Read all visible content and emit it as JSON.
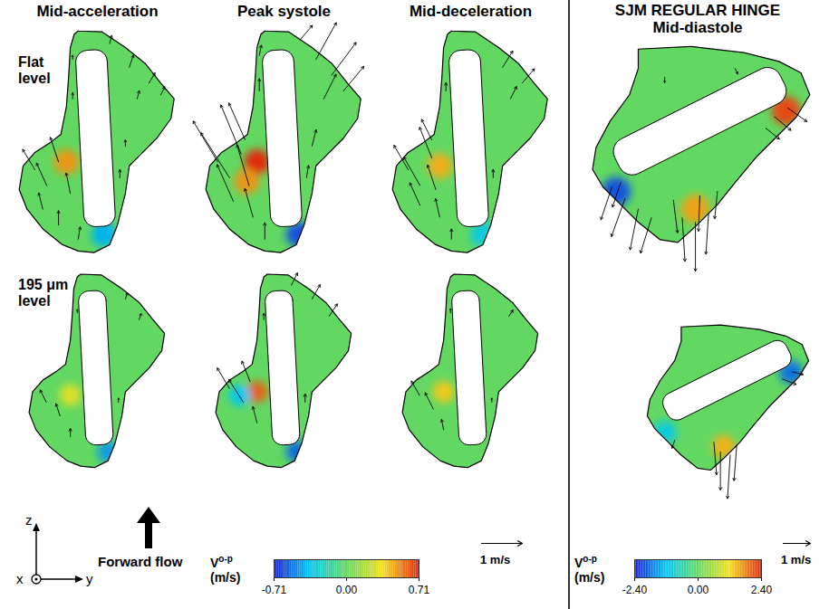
{
  "chart_data": {
    "type": "vector_field",
    "axes_key": {
      "vertical": "z",
      "out_of_page": "x",
      "horizontal": "y"
    },
    "flow_key": "Forward flow",
    "groups": [
      {
        "columns": [
          "Mid-acceleration",
          "Peak systole",
          "Mid-deceleration"
        ],
        "rows": [
          "Flat level",
          "195 μm level"
        ],
        "colorbar": {
          "symbol": "V",
          "superscript": "o-p",
          "unit": "(m/s)",
          "range": [
            -0.71,
            0.71
          ],
          "ticks": [
            -0.71,
            {
              "value": 0,
              "label": "0.00"
            },
            0.71
          ]
        },
        "reference_vector": {
          "value": 1,
          "label": "1 m/s"
        },
        "panels": [
          {
            "row": "Flat level",
            "column": "Mid-acceleration",
            "vectors": [
              [
                30,
                110,
                -0.3,
                0.5
              ],
              [
                45,
                90,
                -0.25,
                0.55
              ],
              [
                60,
                120,
                -0.2,
                0.6
              ],
              [
                40,
                60,
                -0.1,
                0.4
              ],
              [
                60,
                40,
                0,
                0.35
              ],
              [
                75,
                80,
                -0.1,
                0.5
              ],
              [
                85,
                22,
                0.05,
                0.3
              ],
              [
                138,
                100,
                0,
                0.2
              ],
              [
                145,
                140,
                0,
                0.15
              ],
              [
                150,
                240,
                0.1,
                0.3
              ],
              [
                175,
                220,
                0.15,
                0.25
              ],
              [
                160,
                200,
                0.05,
                0.2
              ],
              [
                190,
                205,
                0.1,
                0.2
              ],
              [
                125,
                270,
                0.05,
                0.2
              ],
              [
                78,
                200,
                0,
                0.15
              ],
              [
                78,
                250,
                0,
                0.1
              ]
            ],
            "out_of_plane_spots": [
              [
                70,
                120,
                0.5
              ],
              [
                118,
                28,
                -0.4
              ]
            ]
          },
          {
            "row": "Flat level",
            "column": "Peak systole",
            "vectors": [
              [
                25,
                120,
                -0.6,
                1.0
              ],
              [
                40,
                100,
                -0.7,
                1.1
              ],
              [
                55,
                130,
                -0.5,
                1.2
              ],
              [
                45,
                70,
                -0.4,
                0.9
              ],
              [
                65,
                90,
                -0.3,
                1.0
              ],
              [
                60,
                148,
                -0.4,
                0.9
              ],
              [
                70,
                50,
                -0.2,
                0.7
              ],
              [
                85,
                22,
                0,
                0.4
              ],
              [
                138,
                100,
                0.05,
                0.3
              ],
              [
                145,
                140,
                0.1,
                0.4
              ],
              [
                150,
                250,
                0.5,
                0.9
              ],
              [
                170,
                230,
                0.6,
                0.8
              ],
              [
                185,
                210,
                0.5,
                0.6
              ],
              [
                160,
                200,
                0.3,
                0.6
              ],
              [
                130,
                275,
                0.3,
                0.35
              ],
              [
                78,
                210,
                0,
                0.3
              ],
              [
                78,
                255,
                0.05,
                0.25
              ]
            ],
            "out_of_plane_spots": [
              [
                75,
                120,
                0.71
              ],
              [
                62,
                95,
                0.5
              ],
              [
                128,
                28,
                -0.6
              ]
            ]
          },
          {
            "row": "Flat level",
            "column": "Mid-deceleration",
            "vectors": [
              [
                30,
                110,
                -0.35,
                0.6
              ],
              [
                45,
                90,
                -0.4,
                0.7
              ],
              [
                60,
                125,
                -0.3,
                0.75
              ],
              [
                45,
                65,
                -0.25,
                0.55
              ],
              [
                65,
                85,
                -0.2,
                0.6
              ],
              [
                60,
                148,
                -0.25,
                0.5
              ],
              [
                70,
                50,
                -0.1,
                0.45
              ],
              [
                85,
                22,
                0,
                0.25
              ],
              [
                138,
                100,
                0,
                0.2
              ],
              [
                150,
                240,
                0.25,
                0.4
              ],
              [
                175,
                220,
                0.3,
                0.35
              ],
              [
                160,
                200,
                0.15,
                0.3
              ],
              [
                78,
                210,
                0,
                0.2
              ]
            ],
            "out_of_plane_spots": [
              [
                70,
                115,
                0.45
              ],
              [
                125,
                28,
                -0.3
              ]
            ]
          },
          {
            "row": "195 μm level",
            "column": "Mid-acceleration",
            "vectors": [
              [
                35,
                100,
                -0.15,
                0.3
              ],
              [
                55,
                80,
                -0.1,
                0.3
              ],
              [
                70,
                50,
                0,
                0.2
              ],
              [
                140,
                100,
                0,
                0.1
              ],
              [
                170,
                220,
                0.05,
                0.15
              ],
              [
                150,
                250,
                0.05,
                0.15
              ],
              [
                80,
                230,
                0,
                0.08
              ]
            ],
            "out_of_plane_spots": [
              [
                70,
                110,
                0.3
              ],
              [
                125,
                28,
                -0.45
              ]
            ]
          },
          {
            "row": "195 μm level",
            "column": "Peak systole",
            "vectors": [
              [
                30,
                120,
                -0.3,
                0.5
              ],
              [
                50,
                100,
                -0.35,
                0.55
              ],
              [
                60,
                130,
                -0.2,
                0.5
              ],
              [
                70,
                70,
                -0.1,
                0.4
              ],
              [
                140,
                100,
                0,
                0.2
              ],
              [
                150,
                250,
                0.2,
                0.35
              ],
              [
                175,
                225,
                0.2,
                0.3
              ],
              [
                120,
                270,
                0.15,
                0.3
              ],
              [
                80,
                220,
                0,
                0.15
              ]
            ],
            "out_of_plane_spots": [
              [
                70,
                115,
                0.6
              ],
              [
                45,
                110,
                -0.35
              ],
              [
                128,
                28,
                -0.55
              ]
            ]
          },
          {
            "row": "195 μm level",
            "column": "Mid-deceleration",
            "vectors": [
              [
                35,
                110,
                -0.2,
                0.35
              ],
              [
                55,
                90,
                -0.2,
                0.4
              ],
              [
                70,
                60,
                -0.05,
                0.25
              ],
              [
                140,
                100,
                0,
                0.1
              ],
              [
                165,
                225,
                0.1,
                0.15
              ],
              [
                80,
                230,
                0,
                0.1
              ]
            ],
            "out_of_plane_spots": [
              [
                70,
                115,
                0.4
              ]
            ]
          }
        ]
      },
      {
        "title": "SJM REGULAR HINGE",
        "columns": [
          "Mid-diastole"
        ],
        "colorbar": {
          "symbol": "V",
          "superscript": "o-p",
          "unit": "(m/s)",
          "range": [
            -2.4,
            2.4
          ],
          "ticks": [
            {
              "value": -2.4,
              "label": "-2.40"
            },
            {
              "value": 0,
              "label": "0.00"
            },
            {
              "value": 2.4,
              "label": "2.40"
            }
          ]
        },
        "reference_vector": {
          "value": 1,
          "label": "1 m/s"
        },
        "panels": [
          {
            "column": "Mid-diastole",
            "vectors": [
              [
                40,
                145,
                -0.4,
                -1.2
              ],
              [
                55,
                132,
                -0.5,
                -1.4
              ],
              [
                70,
                120,
                -0.3,
                -1.5
              ],
              [
                85,
                110,
                -0.4,
                -1.3
              ],
              [
                50,
                150,
                -0.3,
                -0.9
              ],
              [
                120,
                110,
                0.1,
                -1.6
              ],
              [
                135,
                105,
                0,
                -1.8
              ],
              [
                150,
                115,
                -0.1,
                -1.5
              ],
              [
                110,
                130,
                0.15,
                -1.2
              ],
              [
                140,
                135,
                -0.05,
                -1.3
              ],
              [
                160,
                140,
                -0.1,
                -1.0
              ],
              [
                225,
                225,
                0.6,
                -0.5
              ],
              [
                240,
                235,
                0.7,
                -0.5
              ],
              [
                215,
                212,
                0.5,
                -0.4
              ],
              [
                100,
                270,
                0,
                -0.2
              ],
              [
                180,
                280,
                0.1,
                -0.2
              ]
            ],
            "out_of_plane_spots": [
              [
                45,
                140,
                -2.0
              ],
              [
                135,
                120,
                1.6
              ],
              [
                238,
                232,
                2.2
              ]
            ]
          },
          {
            "column": "Mid-diastole",
            "vectors": [
              [
                130,
                110,
                0,
                -1.4
              ],
              [
                145,
                105,
                -0.1,
                -1.6
              ],
              [
                120,
                125,
                0.1,
                -1.2
              ],
              [
                155,
                120,
                -0.1,
                -1.3
              ],
              [
                225,
                222,
                0.5,
                -0.2
              ],
              [
                240,
                233,
                0.4,
                -0.1
              ],
              [
                60,
                128,
                -0.1,
                -0.3
              ]
            ],
            "out_of_plane_spots": [
              [
                135,
                118,
                1.5
              ],
              [
                238,
                232,
                -1.8
              ],
              [
                45,
                140,
                -1.0
              ]
            ]
          }
        ]
      }
    ]
  }
}
